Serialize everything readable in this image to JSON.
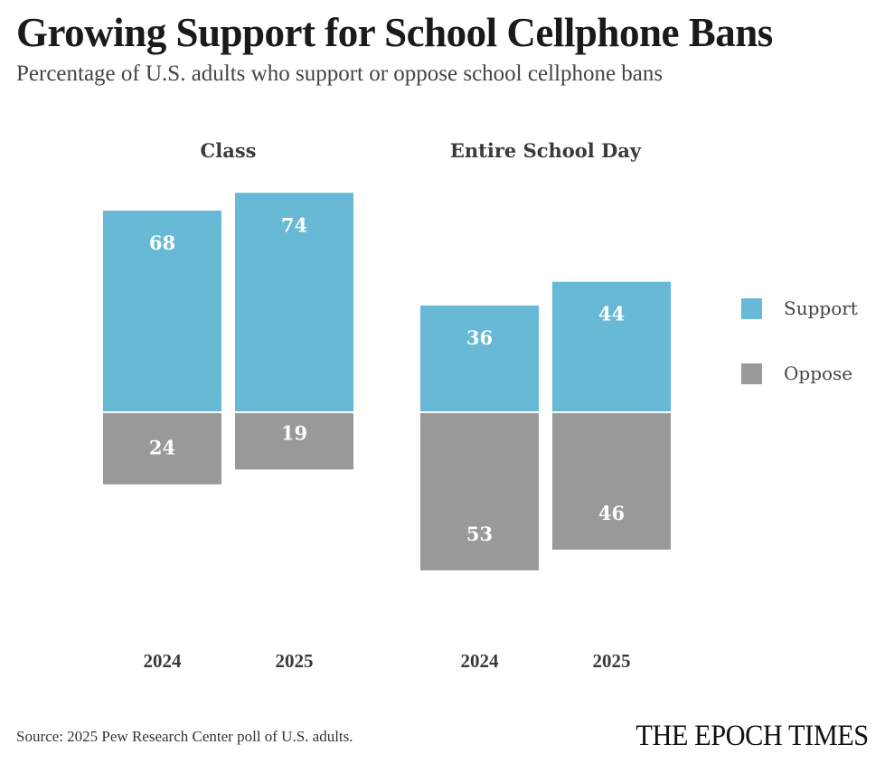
{
  "header": {
    "title": "Growing Support for School Cellphone Bans",
    "subtitle": "Percentage of U.S. adults who support or oppose school cellphone bans"
  },
  "footer": {
    "source": "Source: 2025 Pew Research Center poll of U.S. adults.",
    "logo": "THE EPOCH TIMES"
  },
  "colors": {
    "support": "#67b9d5",
    "oppose": "#999999"
  },
  "chart_data": {
    "type": "bar",
    "subtype": "diverging-stacked",
    "title": "Growing Support for School Cellphone Bans",
    "subtitle": "Percentage of U.S. adults who support or oppose school cellphone bans",
    "xlabel": "",
    "ylabel": "",
    "grid": false,
    "legend": {
      "position": "right",
      "entries": [
        "Support",
        "Oppose"
      ]
    },
    "groups": [
      {
        "name": "Class",
        "categories": [
          "2024",
          "2025"
        ],
        "series": [
          {
            "name": "Support",
            "values": [
              68,
              74
            ]
          },
          {
            "name": "Oppose",
            "values": [
              24,
              19
            ]
          }
        ]
      },
      {
        "name": "Entire School Day",
        "categories": [
          "2024",
          "2025"
        ],
        "series": [
          {
            "name": "Support",
            "values": [
              36,
              44
            ]
          },
          {
            "name": "Oppose",
            "values": [
              53,
              46
            ]
          }
        ]
      }
    ]
  }
}
